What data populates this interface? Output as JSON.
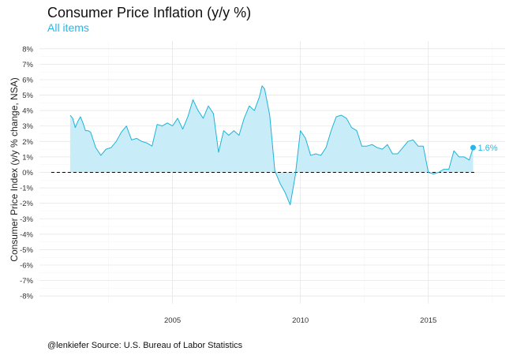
{
  "title": "Consumer Price Inflation (y/y %)",
  "subtitle": "All items",
  "caption": "@lenkiefer Source: U.S. Bureau of Labor Statistics",
  "colors": {
    "line": "#1fb3d6",
    "area": "#c6ecf8",
    "subtitle": "#29b6e6",
    "grid": "#e6e6e6",
    "zero_line": "#000000"
  },
  "chart_data": {
    "type": "area",
    "title": "Consumer Price Inflation (y/y %)",
    "subtitle": "All items",
    "xlabel": "",
    "ylabel": "Consumer Price Index (y/y % change, NSA)",
    "xlim": [
      1999.8,
      2018.0
    ],
    "ylim": [
      -8.5,
      8.5
    ],
    "x_ticks": [
      2005,
      2010,
      2015
    ],
    "x_tick_labels": [
      "2005",
      "2010",
      "2015"
    ],
    "y_ticks": [
      -8,
      -7,
      -6,
      -5,
      -4,
      -3,
      -2,
      -1,
      0,
      1,
      2,
      3,
      4,
      5,
      6,
      7,
      8
    ],
    "y_tick_labels": [
      "-8%",
      "-7%",
      "-6%",
      "-5%",
      "-4%",
      "-3%",
      "-2%",
      "-1%",
      "0%",
      "1%",
      "2%",
      "3%",
      "4%",
      "5%",
      "6%",
      "7%",
      "8%"
    ],
    "grid": true,
    "reference_line": {
      "y": 0,
      "style": "dashed"
    },
    "end_label": "1.6%",
    "series": [
      {
        "x": [
          2001.0,
          2001.1,
          2001.2,
          2001.3,
          2001.4,
          2001.5,
          2001.6,
          2001.7,
          2001.8,
          2001.9,
          2002.0,
          2002.2,
          2002.4,
          2002.6,
          2002.8,
          2003.0,
          2003.2,
          2003.4,
          2003.6,
          2003.8,
          2004.0,
          2004.2,
          2004.4,
          2004.6,
          2004.8,
          2005.0,
          2005.2,
          2005.4,
          2005.6,
          2005.8,
          2006.0,
          2006.2,
          2006.4,
          2006.6,
          2006.8,
          2007.0,
          2007.2,
          2007.4,
          2007.6,
          2007.8,
          2008.0,
          2008.2,
          2008.4,
          2008.5,
          2008.6,
          2008.8,
          2009.0,
          2009.2,
          2009.4,
          2009.6,
          2009.8,
          2010.0,
          2010.2,
          2010.4,
          2010.6,
          2010.8,
          2011.0,
          2011.2,
          2011.4,
          2011.6,
          2011.8,
          2012.0,
          2012.2,
          2012.4,
          2012.6,
          2012.8,
          2013.0,
          2013.2,
          2013.4,
          2013.6,
          2013.8,
          2014.0,
          2014.2,
          2014.4,
          2014.6,
          2014.8,
          2015.0,
          2015.2,
          2015.4,
          2015.6,
          2015.8,
          2016.0,
          2016.2,
          2016.4,
          2016.6,
          2016.75
        ],
        "values": [
          3.7,
          3.5,
          2.9,
          3.3,
          3.6,
          3.2,
          2.7,
          2.7,
          2.6,
          2.1,
          1.6,
          1.1,
          1.5,
          1.6,
          2.0,
          2.6,
          3.0,
          2.1,
          2.2,
          2.0,
          1.9,
          1.7,
          3.1,
          3.0,
          3.2,
          3.0,
          3.5,
          2.8,
          3.6,
          4.7,
          4.0,
          3.5,
          4.3,
          3.8,
          1.3,
          2.7,
          2.4,
          2.7,
          2.4,
          3.5,
          4.3,
          4.0,
          4.9,
          5.6,
          5.4,
          3.7,
          0.1,
          -0.7,
          -1.3,
          -2.1,
          -0.2,
          2.7,
          2.2,
          1.1,
          1.2,
          1.1,
          1.6,
          2.7,
          3.6,
          3.7,
          3.5,
          2.9,
          2.7,
          1.7,
          1.7,
          1.8,
          1.6,
          1.5,
          1.8,
          1.2,
          1.2,
          1.6,
          2.0,
          2.1,
          1.7,
          1.7,
          0.0,
          -0.1,
          0.0,
          0.2,
          0.2,
          1.4,
          1.0,
          1.0,
          0.8,
          1.6
        ],
        "color": "#1fb3d6"
      }
    ]
  }
}
